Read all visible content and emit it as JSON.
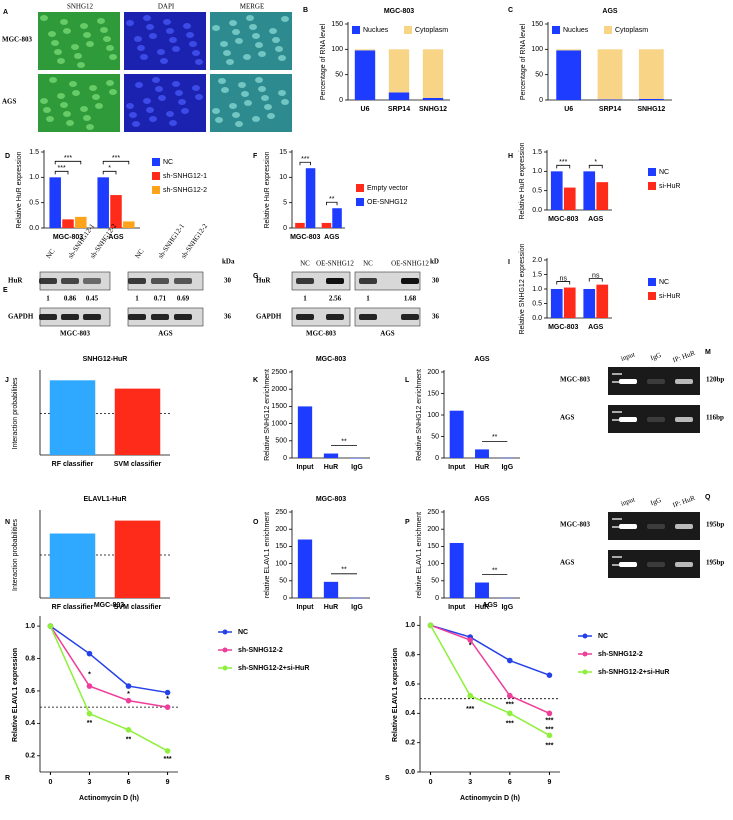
{
  "chart_data": [
    {
      "label": "B",
      "type": "stacked_bar",
      "title": "MGC-803",
      "ylabel": "Percentage of RNA level",
      "categories": [
        "U6",
        "SRP14",
        "SNHG12"
      ],
      "series": [
        {
          "name": "Nuclues",
          "color": "#1e3cff",
          "values": [
            98,
            15,
            4
          ]
        },
        {
          "name": "Cytoplasm",
          "color": "#f8d487",
          "values": [
            2,
            85,
            96
          ]
        }
      ],
      "ylim": [
        0,
        150
      ],
      "yticks": [
        0,
        50,
        100,
        150
      ]
    },
    {
      "label": "C",
      "type": "stacked_bar",
      "title": "AGS",
      "ylabel": "Percentage of RNA level",
      "categories": [
        "U6",
        "SRP14",
        "SNHG12"
      ],
      "series": [
        {
          "name": "Nuclues",
          "color": "#1e3cff",
          "values": [
            98,
            1,
            2
          ]
        },
        {
          "name": "Cytoplasm",
          "color": "#f8d487",
          "values": [
            2,
            99,
            98
          ]
        }
      ],
      "ylim": [
        0,
        150
      ],
      "yticks": [
        0,
        50,
        100,
        150
      ]
    },
    {
      "label": "D",
      "type": "grouped_bar",
      "ylabel": "Relative HuR expression",
      "categories": [
        "MGC-803",
        "AGS"
      ],
      "series": [
        {
          "name": "NC",
          "color": "#1e3cff",
          "values": [
            1,
            1
          ]
        },
        {
          "name": "sh-SNHG12-1",
          "color": "#ff2b1a",
          "values": [
            0.17,
            0.65
          ]
        },
        {
          "name": "sh-SNHG12-2",
          "color": "#ffa31a",
          "values": [
            0.22,
            0.13
          ]
        }
      ],
      "ylim": [
        0,
        1.5
      ],
      "yticks": [
        {
          "value": 0,
          "label": "0.0"
        },
        0.5,
        {
          "value": 1,
          "label": "1.0"
        },
        1.5
      ],
      "significance": [
        [
          "***",
          "***"
        ],
        [
          "*",
          "***"
        ]
      ]
    },
    {
      "label": "F",
      "type": "grouped_bar",
      "ylabel": "Relative HuR expression",
      "categories": [
        "MGC-803",
        "AGS"
      ],
      "series": [
        {
          "name": "Empty vector",
          "color": "#ff2b1a",
          "values": [
            1,
            1
          ]
        },
        {
          "name": "OE-SNHG12",
          "color": "#1e3cff",
          "values": [
            11.8,
            3.9
          ]
        }
      ],
      "ylim": [
        0,
        15
      ],
      "yticks": [
        0,
        5,
        10,
        15
      ],
      "significance": [
        [
          "***"
        ],
        [
          "**"
        ]
      ]
    },
    {
      "label": "H",
      "type": "grouped_bar",
      "ylabel": "Relative HuR expression",
      "categories": [
        "MGC-803",
        "AGS"
      ],
      "series": [
        {
          "name": "NC",
          "color": "#1e3cff",
          "values": [
            1,
            1
          ]
        },
        {
          "name": "si-HuR",
          "color": "#ff2b1a",
          "values": [
            0.58,
            0.72
          ]
        }
      ],
      "ylim": [
        0,
        1.5
      ],
      "yticks": [
        {
          "value": 0,
          "label": "0.0"
        },
        0.5,
        {
          "value": 1,
          "label": "1.0"
        },
        1.5
      ],
      "significance": [
        [
          "***"
        ],
        [
          "*"
        ]
      ]
    },
    {
      "label": "I",
      "type": "grouped_bar",
      "ylabel": "Relative SNHG12 expression",
      "categories": [
        "MGC-803",
        "AGS"
      ],
      "series": [
        {
          "name": "NC",
          "color": "#1e3cff",
          "values": [
            1,
            1
          ]
        },
        {
          "name": "si-HuR",
          "color": "#ff2b1a",
          "values": [
            1.05,
            1.15
          ]
        }
      ],
      "ylim": [
        0,
        2
      ],
      "yticks": [
        {
          "value": 0,
          "label": "0.0"
        },
        0.5,
        {
          "value": 1,
          "label": "1.0"
        },
        1.5,
        {
          "value": 2,
          "label": "2.0"
        }
      ],
      "significance": [
        [
          "ns"
        ],
        [
          "ns"
        ]
      ]
    },
    {
      "label": "J",
      "type": "bar",
      "title": "SNHG12-HuR",
      "ylabel": "Interaction probabilities",
      "categories": [
        "RF classifier",
        "SVM classifier"
      ],
      "values": [
        0.9,
        0.8
      ],
      "colors": [
        "#2fa8ff",
        "#ff2b1a"
      ],
      "ylim": [
        0,
        1
      ],
      "reference_line": 0.5
    },
    {
      "label": "K",
      "type": "bar",
      "title": "MGC-803",
      "ylabel": "Relative SNHG12 enrichment",
      "categories": [
        "Input",
        "HuR",
        "IgG"
      ],
      "values": [
        1500,
        130,
        1
      ],
      "color": "#1e3cff",
      "ylim": [
        0,
        2500
      ],
      "yticks": [
        0,
        500,
        1000,
        1500,
        2000,
        2500
      ],
      "significance": "**"
    },
    {
      "label": "L",
      "type": "bar",
      "title": "AGS",
      "ylabel": "Relative SNHG12 enrichment",
      "categories": [
        "Input",
        "HuR",
        "IgG"
      ],
      "values": [
        110,
        20,
        0.5
      ],
      "color": "#1e3cff",
      "ylim": [
        0,
        200
      ],
      "yticks": [
        0,
        50,
        100,
        150,
        200
      ],
      "significance": "**"
    },
    {
      "label": "N",
      "type": "bar",
      "title": "ELAVL1-HuR",
      "ylabel": "Interaction probabilities",
      "categories": [
        "RF classifier",
        "SVM classifier"
      ],
      "values": [
        0.75,
        0.9
      ],
      "colors": [
        "#2fa8ff",
        "#ff2b1a"
      ],
      "ylim": [
        0,
        1
      ],
      "reference_line": 0.5
    },
    {
      "label": "O",
      "type": "bar",
      "title": "MGC-803",
      "ylabel": "relative ELAVL1 enrichment",
      "categories": [
        "Input",
        "HuR",
        "IgG"
      ],
      "values": [
        170,
        47,
        0.5
      ],
      "color": "#1e3cff",
      "ylim": [
        0,
        250
      ],
      "yticks": [
        0,
        50,
        100,
        150,
        200,
        250
      ],
      "significance": "**"
    },
    {
      "label": "P",
      "type": "bar",
      "title": "AGS",
      "ylabel": "relative ELAVL1 enrichment",
      "categories": [
        "Input",
        "HuR",
        "IgG"
      ],
      "values": [
        160,
        45,
        0.5
      ],
      "color": "#1e3cff",
      "ylim": [
        0,
        250
      ],
      "yticks": [
        0,
        50,
        100,
        150,
        200,
        250
      ],
      "significance": "**"
    },
    {
      "label": "R",
      "type": "line",
      "title": "MGC-803",
      "xlabel": "Actinomycin D (h)",
      "ylabel": "Relative ELAVL1 expression",
      "x": [
        0,
        3,
        6,
        9
      ],
      "series": [
        {
          "name": "NC",
          "color": "#2440e8",
          "values": [
            1,
            0.83,
            0.63,
            0.59
          ]
        },
        {
          "name": "sh-SNHG12-2",
          "color": "#ee3e9a",
          "values": [
            1,
            0.63,
            0.54,
            0.5
          ]
        },
        {
          "name": "sh-SNHG12-2+si-HuR",
          "color": "#8ef03a",
          "values": [
            1,
            0.46,
            0.36,
            0.23
          ]
        }
      ],
      "xlim": [
        -0.8,
        9.8
      ],
      "xticks": [
        0,
        3,
        6,
        9
      ],
      "ylim": [
        0.1,
        1.05
      ],
      "yticks": [
        0.2,
        0.4,
        0.6,
        0.8,
        {
          "value": 1,
          "label": "1.0"
        }
      ],
      "reference_line": 0.5,
      "annotations": [
        {
          "x": 3,
          "y": 0.7,
          "text": "*"
        },
        {
          "x": 3,
          "y": 0.4,
          "text": "**"
        },
        {
          "x": 6,
          "y": 0.58,
          "text": "*"
        },
        {
          "x": 6,
          "y": 0.3,
          "text": "**"
        },
        {
          "x": 9,
          "y": 0.55,
          "text": "*"
        },
        {
          "x": 9,
          "y": 0.18,
          "text": "***"
        }
      ]
    },
    {
      "label": "S",
      "type": "line",
      "title": "AGS",
      "xlabel": "Actinomycin D (h)",
      "ylabel": "Relative ELAVL1 expression",
      "x": [
        0,
        3,
        6,
        9
      ],
      "series": [
        {
          "name": "NC",
          "color": "#2440e8",
          "values": [
            1,
            0.92,
            0.76,
            0.66
          ]
        },
        {
          "name": "sh-SNHG12-2",
          "color": "#ee3e9a",
          "values": [
            1,
            0.9,
            0.52,
            0.4
          ]
        },
        {
          "name": "sh-SNHG12-2+si-HuR",
          "color": "#8ef03a",
          "values": [
            1,
            0.52,
            0.4,
            0.25
          ]
        }
      ],
      "xlim": [
        -0.8,
        9.8
      ],
      "xticks": [
        0,
        3,
        6,
        9
      ],
      "ylim": [
        0,
        1.05
      ],
      "yticks": [
        {
          "value": 0,
          "label": "0.0"
        },
        0.2,
        0.4,
        0.6,
        0.8,
        {
          "value": 1,
          "label": "1.0"
        }
      ],
      "reference_line": 0.5,
      "annotations": [
        {
          "x": 3,
          "y": 0.86,
          "text": "*"
        },
        {
          "x": 3,
          "y": 0.43,
          "text": "***"
        },
        {
          "x": 6,
          "y": 0.46,
          "text": "***"
        },
        {
          "x": 6,
          "y": 0.33,
          "text": "***"
        },
        {
          "x": 9,
          "y": 0.35,
          "text": "***"
        },
        {
          "x": 9,
          "y": 0.29,
          "text": "***"
        },
        {
          "x": 9,
          "y": 0.18,
          "text": "***"
        }
      ]
    }
  ],
  "microscopy": {
    "label": "A",
    "channels": [
      "SNHG12",
      "DAPI",
      "MERGE"
    ],
    "rows": [
      "MGC-803",
      "AGS"
    ]
  },
  "blots": [
    {
      "label": "E",
      "lanes": [
        "NC",
        "sh-SNHG12-1",
        "sh-SNHG12-2",
        "NC",
        "sh-SNHG12-1",
        "sh-SNHG12-2"
      ],
      "proteins": [
        "HuR",
        "GAPDH"
      ],
      "unit": "kDa",
      "sizes": [
        30,
        36
      ],
      "quantification": [
        1,
        0.86,
        0.45,
        1,
        0.71,
        0.69
      ],
      "cell_lines": [
        "MGC-803",
        "AGS"
      ]
    },
    {
      "label": "G",
      "lanes": [
        "NC",
        "OE-SNHG12",
        "NC",
        "OE-SNHG12"
      ],
      "proteins": [
        "HuR",
        "GAPDH"
      ],
      "unit": "kD",
      "sizes": [
        30,
        36
      ],
      "quantification": [
        1,
        2.56,
        1,
        1.68
      ],
      "cell_lines": [
        "MGC-803",
        "AGS"
      ]
    }
  ],
  "gels": [
    {
      "label": "M",
      "lanes": [
        "input",
        "IgG",
        "IP: HuR"
      ],
      "rows": [
        "MGC-803",
        "AGS"
      ],
      "sizes": [
        "120bp",
        "116bp"
      ]
    },
    {
      "label": "Q",
      "lanes": [
        "input",
        "IgG",
        "IP: HuR"
      ],
      "rows": [
        "MGC-803",
        "AGS"
      ],
      "sizes": [
        "195bp",
        "195bp"
      ]
    }
  ]
}
